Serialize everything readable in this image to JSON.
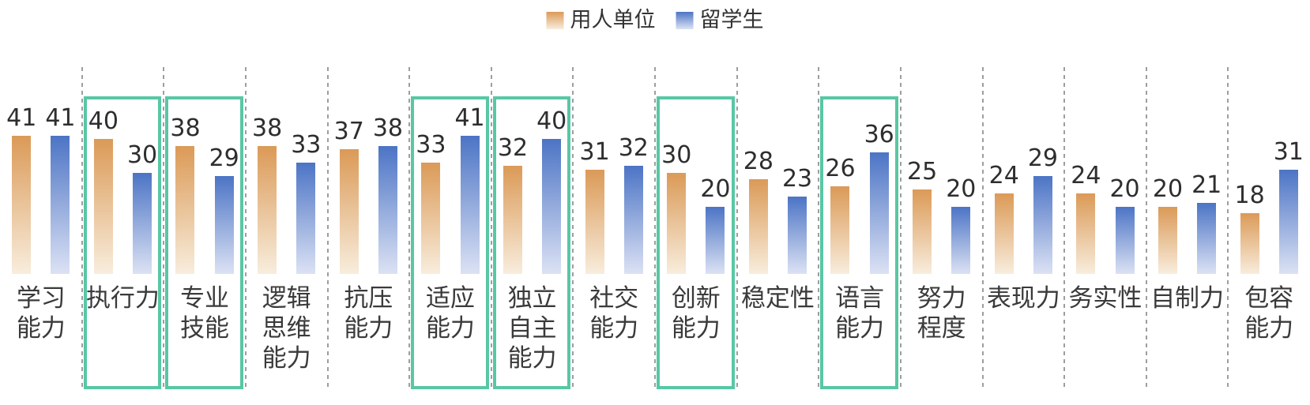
{
  "legend": {
    "items": [
      {
        "key": "employer",
        "label": "用人单位"
      },
      {
        "key": "student",
        "label": "留学生"
      }
    ]
  },
  "colors": {
    "employer_top": "#DB9A57",
    "employer_bottom": "#F8EDDD",
    "student_top": "#4C74C5",
    "student_bottom": "#DCE2F4",
    "highlight_border": "#58C7A4",
    "separator": "#9E9E9E",
    "value_text": "#2E2E2E",
    "label_text": "#3A3A3A"
  },
  "chart_data": {
    "type": "bar",
    "title": "",
    "legend_position": "top",
    "grid": "dashed vertical separators between categories",
    "ylim": [
      0,
      41
    ],
    "categories": [
      "学习能力",
      "执行力",
      "专业技能",
      "逻辑思维能力",
      "抗压能力",
      "适应能力",
      "独立自主能力",
      "社交能力",
      "创新能力",
      "稳定性",
      "语言能力",
      "努力程度",
      "表现力",
      "务实性",
      "自制力",
      "包容能力"
    ],
    "category_display": [
      "学习\n能力",
      "执行力",
      "专业\n技能",
      "逻辑\n思维\n能力",
      "抗压\n能力",
      "适应\n能力",
      "独立\n自主\n能力",
      "社交\n能力",
      "创新\n能力",
      "稳定性",
      "语言\n能力",
      "努力\n程度",
      "表现力",
      "务实性",
      "自制力",
      "包容\n能力"
    ],
    "series": [
      {
        "name": "用人单位",
        "values": [
          41,
          40,
          38,
          38,
          37,
          33,
          32,
          31,
          30,
          28,
          26,
          25,
          24,
          24,
          20,
          18
        ]
      },
      {
        "name": "留学生",
        "values": [
          41,
          30,
          29,
          33,
          38,
          41,
          40,
          32,
          20,
          23,
          36,
          20,
          29,
          20,
          21,
          31
        ]
      }
    ],
    "highlighted": [
      false,
      true,
      true,
      false,
      false,
      true,
      true,
      false,
      true,
      false,
      true,
      false,
      false,
      false,
      false,
      false
    ],
    "highlighted_categories": [
      "执行力",
      "专业技能",
      "适应能力",
      "独立自主能力",
      "创新能力",
      "语言能力"
    ]
  }
}
